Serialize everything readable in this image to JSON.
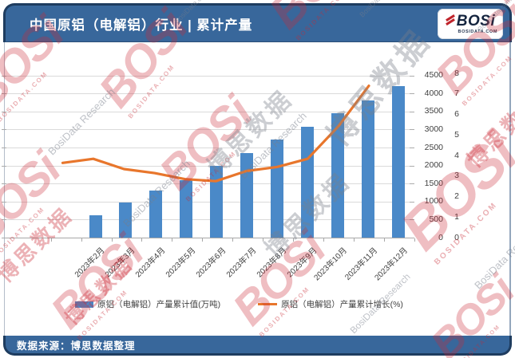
{
  "header": {
    "title": "中国原铝（电解铝）行业 | 累计产量",
    "logo": {
      "brand": "BOSi",
      "domain": "BOSIDATA.COM"
    }
  },
  "footer": {
    "source": "数据来源：博思数据整理"
  },
  "legend": [
    {
      "label": "原铝（电解铝）产量累计值(万吨)",
      "type": "bar",
      "color": "#4A89C8"
    },
    {
      "label": "原铝（电解铝）产量累计增长(%)",
      "type": "line",
      "color": "#E8762C"
    }
  ],
  "watermark": {
    "brand": "BOSi",
    "domain": "BOSIDATA.COM",
    "cn": "博思数据",
    "en": "BosiData Research",
    "site": "BosiData.com",
    "red": "#C9242B",
    "gray": "#8A8F98"
  },
  "chart_data": {
    "type": "bar+line",
    "title": "中国原铝（电解铝）行业 | 累计产量",
    "categories": [
      "2023年2月",
      "2023年3月",
      "2023年4月",
      "2023年5月",
      "2023年6月",
      "2023年7月",
      "2023年8月",
      "2023年9月",
      "2023年10月",
      "2023年11月",
      "2023年12月"
    ],
    "series": [
      {
        "name": "原铝（电解铝）产量累计值(万吨)",
        "type": "bar",
        "axis": "y1",
        "color": "#4A89C8",
        "values": [
          640,
          990,
          1320,
          1600,
          2010,
          2360,
          2740,
          3080,
          3470,
          3810,
          4210
        ]
      },
      {
        "name": "原铝（电解铝）产量累计增长(%)",
        "type": "line",
        "axis": "y2",
        "color": "#E8762C",
        "values": [
          3.7,
          3.9,
          3.4,
          3.2,
          2.9,
          2.8,
          3.3,
          3.5,
          3.9,
          5.5,
          7.5
        ]
      }
    ],
    "y1_axis": {
      "min": 0,
      "max": 4500,
      "step": 500,
      "side": "right",
      "ticks": [
        0,
        500,
        1000,
        1500,
        2000,
        2500,
        3000,
        3500,
        4000,
        4500
      ]
    },
    "y2_axis": {
      "min": 0,
      "max": 8,
      "step": 1,
      "side": "right",
      "ticks": [
        0,
        1,
        2,
        3,
        4,
        5,
        6,
        7,
        8
      ]
    },
    "grid": true,
    "legend_position": "bottom"
  }
}
